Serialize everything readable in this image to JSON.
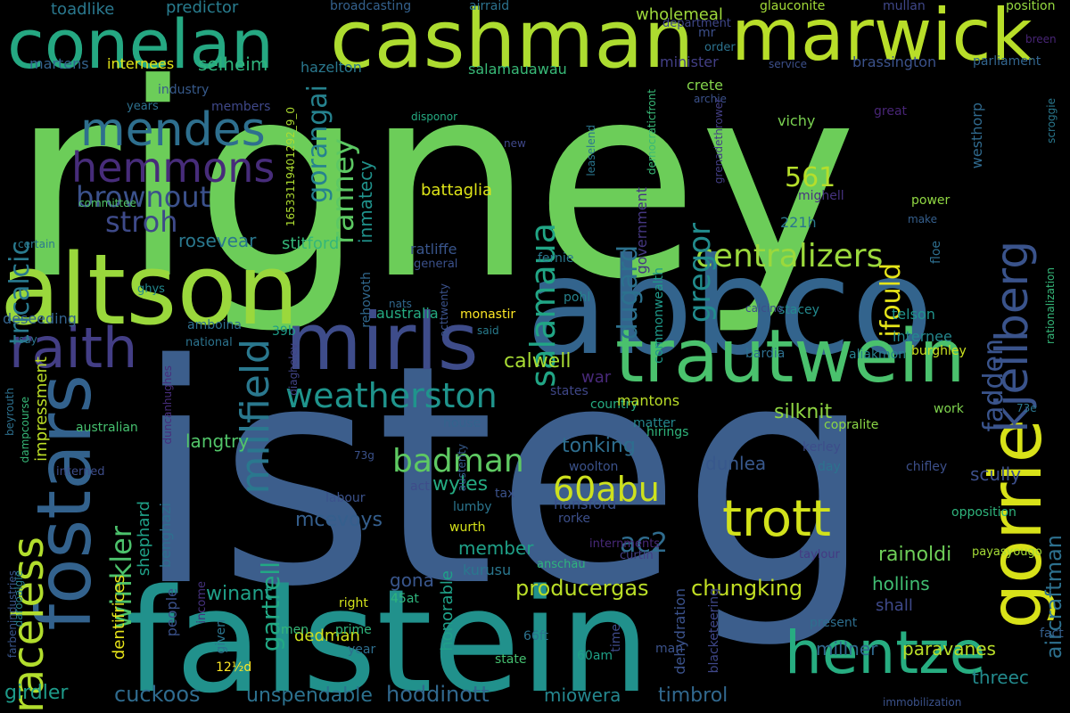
{
  "background": "#000000",
  "words": [
    {
      "text": "rigney",
      "color": "#6ccd59"
    },
    {
      "text": "isteg",
      "color": "#3c5e8c"
    },
    {
      "text": "falstein",
      "color": "#21918c"
    },
    {
      "text": "abbco",
      "color": "#33648d"
    },
    {
      "text": "altson",
      "color": "#9ad83c"
    },
    {
      "text": "cashman",
      "color": "#addc30"
    },
    {
      "text": "conelan",
      "color": "#25a882"
    },
    {
      "text": "marwick",
      "color": "#b8de29"
    },
    {
      "text": "fostars",
      "color": "#33628d"
    },
    {
      "text": "gorrie",
      "color": "#d8e219"
    },
    {
      "text": "trautwein",
      "color": "#4ac16d"
    },
    {
      "text": "mirls",
      "color": "#3e4c8a"
    },
    {
      "text": "hentze",
      "color": "#27ad81"
    },
    {
      "text": "raith",
      "color": "#433e85"
    },
    {
      "text": "mendes",
      "color": "#2e6f8e"
    },
    {
      "text": "hemmons",
      "color": "#472c7a"
    },
    {
      "text": "trott",
      "color": "#d2e21b"
    },
    {
      "text": "kjellberg",
      "color": "#3a538b"
    },
    {
      "text": "weatherston",
      "color": "#1f948c"
    },
    {
      "text": "raceless",
      "color": "#b2dd2d"
    },
    {
      "text": "millfield",
      "color": "#2a788e"
    },
    {
      "text": "centralizers",
      "color": "#9bd93c"
    },
    {
      "text": "salamaua",
      "color": "#21a585"
    },
    {
      "text": "badman",
      "color": "#5ec962"
    },
    {
      "text": "60abu",
      "color": "#cde11d"
    },
    {
      "text": "brownout",
      "color": "#3b518b"
    },
    {
      "text": "stroh",
      "color": "#3e4a89"
    },
    {
      "text": "ranney",
      "color": "#5cc863"
    },
    {
      "text": "gorangai",
      "color": "#26828e"
    },
    {
      "text": "tricalcic",
      "color": "#297a8e"
    },
    {
      "text": "dugard",
      "color": "#2c718e"
    },
    {
      "text": "gregor",
      "color": "#228c8d"
    },
    {
      "text": "ifould",
      "color": "#e5e419"
    },
    {
      "text": "fadden",
      "color": "#3a548c"
    },
    {
      "text": "aircraftman",
      "color": "#2d708e"
    },
    {
      "text": "winkler",
      "color": "#4cc26c"
    },
    {
      "text": "gartrell",
      "color": "#22a884"
    },
    {
      "text": "ac2",
      "color": "#2f6c8e"
    },
    {
      "text": "561",
      "color": "#b5de2b"
    },
    {
      "text": "chungking",
      "color": "#c2df23"
    },
    {
      "text": "producergas",
      "color": "#bade28"
    },
    {
      "text": "hoddinott",
      "color": "#31688e"
    },
    {
      "text": "cuckoos",
      "color": "#2f6b8e"
    },
    {
      "text": "inmatecy",
      "color": "#20928c"
    },
    {
      "text": "weatherston_",
      "color": "#1f948c"
    },
    {
      "text": "selheim",
      "color": "#2fb47c"
    },
    {
      "text": "rosevear",
      "color": "#2a788e"
    },
    {
      "text": "stitford",
      "color": "#35b779"
    },
    {
      "text": "langtry",
      "color": "#52c569"
    },
    {
      "text": "calwell",
      "color": "#a8db34"
    },
    {
      "text": "silknit",
      "color": "#90d743"
    },
    {
      "text": "tonking",
      "color": "#2e6e8e"
    },
    {
      "text": "wyles",
      "color": "#25ab82"
    },
    {
      "text": "mcevoys",
      "color": "#355f8d"
    },
    {
      "text": "winant",
      "color": "#1fa088"
    },
    {
      "text": "unspendable",
      "color": "#2c718e"
    },
    {
      "text": "timbrol",
      "color": "#31688e"
    },
    {
      "text": "miowera",
      "color": "#24868e"
    },
    {
      "text": "girdler",
      "color": "#1e9b8a"
    },
    {
      "text": "millner",
      "color": "#30698e"
    },
    {
      "text": "paravanes",
      "color": "#bade28"
    },
    {
      "text": "dedman",
      "color": "#d0e11c"
    },
    {
      "text": "member",
      "color": "#1fa188"
    },
    {
      "text": "rainoldi",
      "color": "#6ece58"
    },
    {
      "text": "scully",
      "color": "#3c4f8a"
    },
    {
      "text": "dunlea",
      "color": "#38588c"
    },
    {
      "text": "hollins",
      "color": "#40bd72"
    },
    {
      "text": "shall",
      "color": "#3e4989"
    },
    {
      "text": "threec",
      "color": "#238a8d"
    }
  ],
  "small_words": [
    {
      "text": "toadlike",
      "color": "#2a788e"
    },
    {
      "text": "predictor",
      "color": "#287c8e"
    },
    {
      "text": "broadcasting",
      "color": "#34618d"
    },
    {
      "text": "airraid",
      "color": "#2c728e"
    },
    {
      "text": "glauconite",
      "color": "#a2da37"
    },
    {
      "text": "mullan",
      "color": "#3f4788"
    },
    {
      "text": "position",
      "color": "#95d840"
    },
    {
      "text": "department",
      "color": "#3f4788"
    },
    {
      "text": "wholemeal",
      "color": "#9dd93b"
    },
    {
      "text": "martens",
      "color": "#33628d"
    },
    {
      "text": "internees",
      "color": "#e2e418"
    },
    {
      "text": "16533119401292_9_0",
      "color": "#addc30"
    },
    {
      "text": "hazelton",
      "color": "#2a788e"
    },
    {
      "text": "salamauawau",
      "color": "#38b977"
    },
    {
      "text": "minister",
      "color": "#423f85"
    },
    {
      "text": "brassington",
      "color": "#3b528b"
    },
    {
      "text": "parliament",
      "color": "#32658e"
    },
    {
      "text": "industry",
      "color": "#375a8c"
    },
    {
      "text": "members",
      "color": "#3f4889"
    },
    {
      "text": "years",
      "color": "#2d708e"
    },
    {
      "text": "committee",
      "color": "#52c569"
    },
    {
      "text": "disponor",
      "color": "#25ab82"
    },
    {
      "text": "crete",
      "color": "#84d44b"
    },
    {
      "text": "vichy",
      "color": "#7ad151"
    },
    {
      "text": "archie",
      "color": "#3b518b"
    },
    {
      "text": "great",
      "color": "#482576"
    },
    {
      "text": "scroggie",
      "color": "#2a788e"
    },
    {
      "text": "westhorp",
      "color": "#306a8e"
    },
    {
      "text": "leaselend",
      "color": "#2a768e"
    },
    {
      "text": "grenadethrower",
      "color": "#433e85"
    },
    {
      "text": "democraticfront",
      "color": "#38b977"
    },
    {
      "text": "new",
      "color": "#3f4889"
    },
    {
      "text": "battaglia",
      "color": "#dde318"
    },
    {
      "text": "government",
      "color": "#453781"
    },
    {
      "text": "mighell",
      "color": "#46337f"
    },
    {
      "text": "power",
      "color": "#90d743"
    },
    {
      "text": "make",
      "color": "#355f8d"
    },
    {
      "text": "221h",
      "color": "#2a778e"
    },
    {
      "text": "ratliffe",
      "color": "#39558c"
    },
    {
      "text": "general",
      "color": "#3b518b"
    },
    {
      "text": "floe",
      "color": "#2e6e8e"
    },
    {
      "text": "fernie",
      "color": "#2a788e"
    },
    {
      "text": "certain",
      "color": "#2a788e"
    },
    {
      "text": "ghys",
      "color": "#23898e"
    },
    {
      "text": "rehovoth",
      "color": "#31688e"
    },
    {
      "text": "pohl",
      "color": "#26828e"
    },
    {
      "text": "acttwenty",
      "color": "#3b528b"
    },
    {
      "text": "commonwealth",
      "color": "#1f998a"
    },
    {
      "text": "stacey",
      "color": "#23898e"
    },
    {
      "text": "telson",
      "color": "#20938c"
    },
    {
      "text": "deseeding",
      "color": "#33628d"
    },
    {
      "text": "amboina",
      "color": "#2e6f8e"
    },
    {
      "text": "australia",
      "color": "#25ab82"
    },
    {
      "text": "monastir",
      "color": "#fde725"
    },
    {
      "text": "nats",
      "color": "#31688e"
    },
    {
      "text": "said",
      "color": "#287c8e"
    },
    {
      "text": "calcino",
      "color": "#3d4e8a"
    },
    {
      "text": "internee",
      "color": "#24878e"
    },
    {
      "text": "rationalization",
      "color": "#35b779"
    },
    {
      "text": "national",
      "color": "#2c738e"
    },
    {
      "text": "39b",
      "color": "#1e9d89"
    },
    {
      "text": "say",
      "color": "#2b748e"
    },
    {
      "text": "aliakmon",
      "color": "#27808e"
    },
    {
      "text": "bardia",
      "color": "#2e6f8e"
    },
    {
      "text": "burghley",
      "color": "#cae11f"
    },
    {
      "text": "diaghelev",
      "color": "#414487"
    },
    {
      "text": "war",
      "color": "#482979"
    },
    {
      "text": "beyrouth",
      "color": "#2d708e"
    },
    {
      "text": "dampcourse",
      "color": "#37b878"
    },
    {
      "text": "duncanhughes",
      "color": "#472d7b"
    },
    {
      "text": "states",
      "color": "#3f4788"
    },
    {
      "text": "country",
      "color": "#25ac82"
    },
    {
      "text": "mantons",
      "color": "#bade28"
    },
    {
      "text": "house",
      "color": "#33638d"
    },
    {
      "text": "matter",
      "color": "#24868e"
    },
    {
      "text": "hirings",
      "color": "#2fb47c"
    },
    {
      "text": "copralite",
      "color": "#8bd646"
    },
    {
      "text": "work",
      "color": "#7fd34e"
    },
    {
      "text": "73e",
      "color": "#2a768e"
    },
    {
      "text": "australian",
      "color": "#46c06f"
    },
    {
      "text": "kerley",
      "color": "#3d4d8a"
    },
    {
      "text": "woolton",
      "color": "#3b528b"
    },
    {
      "text": "day",
      "color": "#2c728e"
    },
    {
      "text": "chifley",
      "color": "#3c4f8a"
    },
    {
      "text": "73g",
      "color": "#3b528b"
    },
    {
      "text": "interned",
      "color": "#3d4d8a"
    },
    {
      "text": "austerity",
      "color": "#375b8d"
    },
    {
      "text": "act",
      "color": "#3e4c8a"
    },
    {
      "text": "tax",
      "color": "#3b528b"
    },
    {
      "text": "labour",
      "color": "#3b528b"
    },
    {
      "text": "hansford",
      "color": "#3b518b"
    },
    {
      "text": "rorke",
      "color": "#3c4f8a"
    },
    {
      "text": "wurth",
      "color": "#d5e21a"
    },
    {
      "text": "lumby",
      "color": "#2b758e"
    },
    {
      "text": "internments",
      "color": "#482979"
    },
    {
      "text": "curtin",
      "color": "#433e85"
    },
    {
      "text": "anschau",
      "color": "#2fb47c"
    },
    {
      "text": "kurusu",
      "color": "#2a778e"
    },
    {
      "text": "opposition",
      "color": "#2fb47c"
    },
    {
      "text": "taylour",
      "color": "#443a83"
    },
    {
      "text": "payasyougo",
      "color": "#a5db36"
    },
    {
      "text": "farbenindustries",
      "color": "#39568c"
    },
    {
      "text": "darooalgie",
      "color": "#27808e"
    },
    {
      "text": "dentifrices",
      "color": "#e7e419"
    },
    {
      "text": "income",
      "color": "#46327e"
    },
    {
      "text": "people",
      "color": "#3b528b"
    },
    {
      "text": "given",
      "color": "#2b748e"
    },
    {
      "text": "men",
      "color": "#35b779"
    },
    {
      "text": "right",
      "color": "#d2e21b"
    },
    {
      "text": "45at",
      "color": "#2fb47c"
    },
    {
      "text": "prime",
      "color": "#2fb47c"
    },
    {
      "text": "year",
      "color": "#2e6e8e"
    },
    {
      "text": "12½d",
      "color": "#fde725"
    },
    {
      "text": "state",
      "color": "#44bf70"
    },
    {
      "text": "66ft",
      "color": "#2c728e"
    },
    {
      "text": "60am",
      "color": "#1fa188"
    },
    {
      "text": "time",
      "color": "#3e4a89"
    },
    {
      "text": "dehydration",
      "color": "#3b528b"
    },
    {
      "text": "blacketeering",
      "color": "#3f4788"
    },
    {
      "text": "man",
      "color": "#3b528b"
    },
    {
      "text": "present",
      "color": "#2e6e8e"
    },
    {
      "text": "fact",
      "color": "#355f8d"
    },
    {
      "text": "immobilization",
      "color": "#3b528b"
    },
    {
      "text": "impressment",
      "color": "#bddf26"
    },
    {
      "text": "benghazi",
      "color": "#2d708e"
    },
    {
      "text": "shephard",
      "color": "#1fa088"
    },
    {
      "text": "gona",
      "color": "#39568c"
    },
    {
      "text": "honorable",
      "color": "#1fa088"
    },
    {
      "text": "breen",
      "color": "#482576"
    },
    {
      "text": "service",
      "color": "#3c4f8a"
    },
    {
      "text": "order",
      "color": "#2c728e"
    },
    {
      "text": "mr",
      "color": "#3c4f8a"
    }
  ]
}
